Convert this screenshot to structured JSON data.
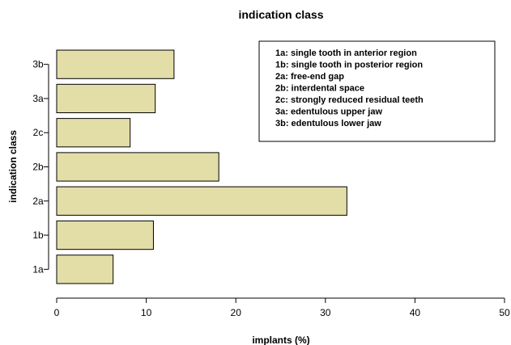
{
  "chart_data": {
    "type": "bar",
    "orientation": "horizontal",
    "title": "indication class",
    "xlabel": "implants (%)",
    "ylabel": "indication class",
    "categories": [
      "1a",
      "1b",
      "2a",
      "2b",
      "2c",
      "3a",
      "3b"
    ],
    "values": [
      6.3,
      10.8,
      32.4,
      18.1,
      8.2,
      11.0,
      13.1
    ],
    "xlim": [
      0,
      50
    ],
    "xticks": [
      0,
      10,
      20,
      30,
      40,
      50
    ],
    "grid": false,
    "legend_position": "top-right",
    "bar_color": "#e3dea8",
    "bar_edge_color": "#000000",
    "legend": [
      "1a: single tooth in anterior region",
      "1b: single tooth in posterior region",
      "2a: free-end gap",
      "2b: interdental space",
      "2c: strongly reduced residual teeth",
      "3a: edentulous upper jaw",
      "3b: edentulous lower jaw"
    ]
  }
}
